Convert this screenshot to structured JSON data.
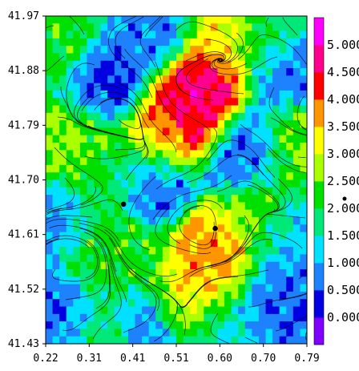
{
  "chart_data": {
    "type": "heatmap",
    "title": "",
    "xlabel": "",
    "ylabel": "",
    "xlim": [
      0.22,
      0.79
    ],
    "ylim": [
      41.43,
      41.97
    ],
    "x_ticks": [
      "0.22",
      "0.31",
      "0.41",
      "0.51",
      "0.60",
      "0.70",
      "0.79"
    ],
    "y_ticks": [
      "41.97",
      "41.88",
      "41.79",
      "41.70",
      "41.61",
      "41.52",
      "41.43"
    ],
    "overlay": "streamlines",
    "markers": [
      {
        "x": 0.39,
        "y": 41.66
      },
      {
        "x": 0.59,
        "y": 41.62
      }
    ],
    "colorbar": {
      "levels": [
        "0.000",
        "0.500",
        "1.000",
        "1.500",
        "2.000",
        "2.500",
        "3.000",
        "3.500",
        "4.000",
        "4.500",
        "5.000"
      ],
      "colors": [
        "#8000ff",
        "#0000e0",
        "#1e82ff",
        "#00e0ff",
        "#00e878",
        "#00e000",
        "#aaff00",
        "#ffff00",
        "#ff9600",
        "#ff0000",
        "#ff008c",
        "#ff00ff"
      ],
      "marker_value": 2.0
    },
    "fields": [
      {
        "x": 0.25,
        "y": 41.93,
        "v": 2.2
      },
      {
        "x": 0.35,
        "y": 41.86,
        "v": 0.4
      },
      {
        "x": 0.46,
        "y": 41.94,
        "v": 0.8
      },
      {
        "x": 0.56,
        "y": 41.86,
        "v": 4.8
      },
      {
        "x": 0.53,
        "y": 41.81,
        "v": 4.6
      },
      {
        "x": 0.47,
        "y": 41.77,
        "v": 3.6
      },
      {
        "x": 0.61,
        "y": 41.93,
        "v": 3.2
      },
      {
        "x": 0.7,
        "y": 41.94,
        "v": 2.0
      },
      {
        "x": 0.75,
        "y": 41.88,
        "v": 0.7
      },
      {
        "x": 0.66,
        "y": 41.74,
        "v": 0.6
      },
      {
        "x": 0.29,
        "y": 41.76,
        "v": 2.6
      },
      {
        "x": 0.36,
        "y": 41.71,
        "v": 2.1
      },
      {
        "x": 0.45,
        "y": 41.7,
        "v": 0.5
      },
      {
        "x": 0.25,
        "y": 41.62,
        "v": 0.9
      },
      {
        "x": 0.33,
        "y": 41.58,
        "v": 2.4
      },
      {
        "x": 0.41,
        "y": 41.57,
        "v": 2.2
      },
      {
        "x": 0.59,
        "y": 41.58,
        "v": 3.7
      },
      {
        "x": 0.56,
        "y": 41.53,
        "v": 3.8
      },
      {
        "x": 0.52,
        "y": 41.5,
        "v": 3.0
      },
      {
        "x": 0.68,
        "y": 41.64,
        "v": 2.6
      },
      {
        "x": 0.75,
        "y": 41.6,
        "v": 1.0
      },
      {
        "x": 0.73,
        "y": 41.5,
        "v": 0.6
      },
      {
        "x": 0.27,
        "y": 41.48,
        "v": 0.5
      },
      {
        "x": 0.34,
        "y": 41.46,
        "v": 2.1
      },
      {
        "x": 0.44,
        "y": 41.46,
        "v": 0.6
      },
      {
        "x": 0.61,
        "y": 41.46,
        "v": 1.3
      },
      {
        "x": 0.77,
        "y": 41.76,
        "v": 2.6
      }
    ]
  }
}
